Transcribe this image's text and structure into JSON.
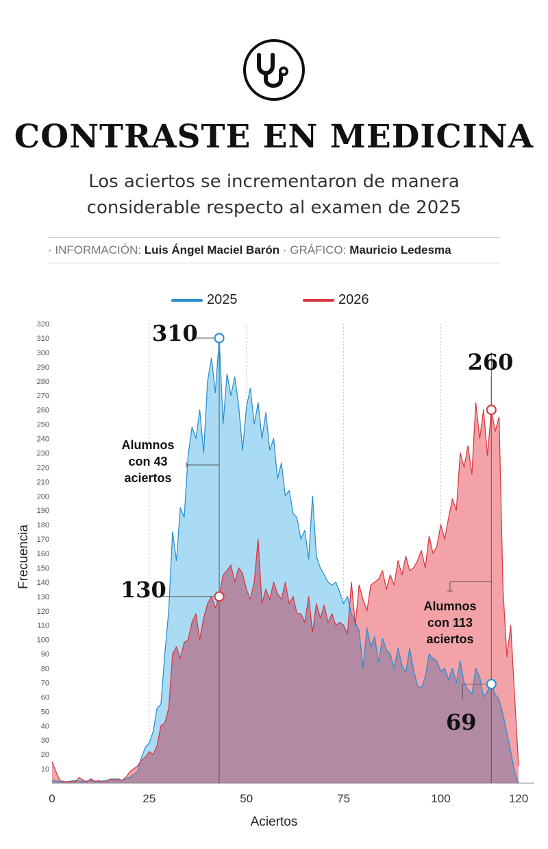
{
  "header": {
    "icon": "stethoscope-icon",
    "title": "CONTRASTE EN MEDICINA",
    "subtitle_line1": "Los aciertos se incrementaron de manera",
    "subtitle_line2": "considerable respecto al examen de 2025"
  },
  "credits": {
    "info_label": "· INFORMACIÓN:",
    "info_name": "Luis Ángel Maciel Barón",
    "graphic_label": "· GRÁFICO:",
    "graphic_name": "Mauricio Ledesma"
  },
  "colors": {
    "s2025_line": "#2d8fcf",
    "s2025_fill": "#a9dcf4",
    "s2026_line": "#d83a43",
    "s2026_fill": "#f3a3a8",
    "overlap_fill": "#b28aa3"
  },
  "chart_data": {
    "type": "area",
    "xlabel": "Aciertos",
    "ylabel": "Frecuencia",
    "xlim": [
      0,
      120
    ],
    "ylim": [
      0,
      320
    ],
    "xticks": [
      0,
      25,
      50,
      75,
      100,
      120
    ],
    "yticks": [
      10,
      20,
      30,
      40,
      50,
      60,
      70,
      80,
      90,
      100,
      110,
      120,
      130,
      140,
      150,
      160,
      170,
      180,
      190,
      200,
      210,
      220,
      230,
      240,
      250,
      260,
      270,
      280,
      290,
      300,
      310,
      320
    ],
    "grid": "vertical dotted at 25, 50, 75, 100",
    "legend": "top",
    "series": [
      {
        "name": "2025",
        "points": [
          [
            0,
            2
          ],
          [
            2,
            1
          ],
          [
            4,
            1
          ],
          [
            6,
            2
          ],
          [
            8,
            1
          ],
          [
            10,
            2
          ],
          [
            12,
            1
          ],
          [
            14,
            2
          ],
          [
            16,
            3
          ],
          [
            18,
            2
          ],
          [
            20,
            4
          ],
          [
            22,
            8
          ],
          [
            23,
            18
          ],
          [
            24,
            25
          ],
          [
            25,
            28
          ],
          [
            26,
            36
          ],
          [
            27,
            52
          ],
          [
            28,
            55
          ],
          [
            29,
            90
          ],
          [
            30,
            120
          ],
          [
            31,
            175
          ],
          [
            32,
            155
          ],
          [
            33,
            192
          ],
          [
            34,
            185
          ],
          [
            35,
            228
          ],
          [
            36,
            248
          ],
          [
            37,
            240
          ],
          [
            38,
            260
          ],
          [
            39,
            230
          ],
          [
            40,
            280
          ],
          [
            41,
            296
          ],
          [
            42,
            272
          ],
          [
            43,
            310
          ],
          [
            44,
            250
          ],
          [
            45,
            285
          ],
          [
            46,
            270
          ],
          [
            47,
            283
          ],
          [
            48,
            263
          ],
          [
            49,
            232
          ],
          [
            50,
            262
          ],
          [
            51,
            275
          ],
          [
            52,
            250
          ],
          [
            53,
            265
          ],
          [
            54,
            240
          ],
          [
            55,
            258
          ],
          [
            56,
            232
          ],
          [
            57,
            240
          ],
          [
            58,
            212
          ],
          [
            59,
            223
          ],
          [
            60,
            200
          ],
          [
            61,
            204
          ],
          [
            62,
            188
          ],
          [
            63,
            185
          ],
          [
            64,
            170
          ],
          [
            65,
            176
          ],
          [
            66,
            156
          ],
          [
            67,
            200
          ],
          [
            68,
            158
          ],
          [
            69,
            150
          ],
          [
            70,
            145
          ],
          [
            71,
            140
          ],
          [
            72,
            138
          ],
          [
            73,
            140
          ],
          [
            74,
            133
          ],
          [
            75,
            125
          ],
          [
            76,
            130
          ],
          [
            77,
            118
          ],
          [
            78,
            112
          ],
          [
            79,
            106
          ],
          [
            80,
            80
          ],
          [
            81,
            108
          ],
          [
            82,
            95
          ],
          [
            83,
            102
          ],
          [
            84,
            84
          ],
          [
            85,
            101
          ],
          [
            86,
            93
          ],
          [
            87,
            90
          ],
          [
            88,
            80
          ],
          [
            89,
            94
          ],
          [
            90,
            82
          ],
          [
            91,
            77
          ],
          [
            92,
            94
          ],
          [
            93,
            79
          ],
          [
            94,
            68
          ],
          [
            95,
            66
          ],
          [
            96,
            74
          ],
          [
            97,
            90
          ],
          [
            98,
            87
          ],
          [
            99,
            85
          ],
          [
            100,
            78
          ],
          [
            101,
            80
          ],
          [
            102,
            72
          ],
          [
            103,
            80
          ],
          [
            104,
            70
          ],
          [
            105,
            85
          ],
          [
            106,
            70
          ],
          [
            107,
            65
          ],
          [
            108,
            62
          ],
          [
            109,
            80
          ],
          [
            110,
            74
          ],
          [
            111,
            60
          ],
          [
            112,
            64
          ],
          [
            113,
            69
          ],
          [
            114,
            62
          ],
          [
            115,
            58
          ],
          [
            116,
            48
          ],
          [
            117,
            35
          ],
          [
            118,
            22
          ],
          [
            119,
            8
          ],
          [
            120,
            0
          ]
        ]
      },
      {
        "name": "2026",
        "points": [
          [
            0,
            15
          ],
          [
            1,
            8
          ],
          [
            2,
            2
          ],
          [
            3,
            1
          ],
          [
            4,
            1
          ],
          [
            5,
            1
          ],
          [
            6,
            1
          ],
          [
            7,
            4
          ],
          [
            8,
            2
          ],
          [
            9,
            1
          ],
          [
            10,
            3
          ],
          [
            11,
            1
          ],
          [
            12,
            2
          ],
          [
            13,
            1
          ],
          [
            14,
            1
          ],
          [
            15,
            3
          ],
          [
            16,
            2
          ],
          [
            17,
            3
          ],
          [
            18,
            2
          ],
          [
            19,
            4
          ],
          [
            20,
            8
          ],
          [
            21,
            10
          ],
          [
            22,
            12
          ],
          [
            23,
            16
          ],
          [
            24,
            18
          ],
          [
            25,
            22
          ],
          [
            26,
            20
          ],
          [
            27,
            26
          ],
          [
            28,
            40
          ],
          [
            29,
            42
          ],
          [
            30,
            52
          ],
          [
            31,
            90
          ],
          [
            32,
            95
          ],
          [
            33,
            87
          ],
          [
            34,
            98
          ],
          [
            35,
            100
          ],
          [
            36,
            112
          ],
          [
            37,
            118
          ],
          [
            38,
            100
          ],
          [
            39,
            115
          ],
          [
            40,
            125
          ],
          [
            41,
            130
          ],
          [
            42,
            122
          ],
          [
            43,
            130
          ],
          [
            44,
            145
          ],
          [
            45,
            148
          ],
          [
            46,
            152
          ],
          [
            47,
            140
          ],
          [
            48,
            150
          ],
          [
            49,
            146
          ],
          [
            50,
            135
          ],
          [
            51,
            128
          ],
          [
            52,
            140
          ],
          [
            53,
            170
          ],
          [
            54,
            125
          ],
          [
            55,
            135
          ],
          [
            56,
            128
          ],
          [
            57,
            140
          ],
          [
            58,
            132
          ],
          [
            59,
            128
          ],
          [
            60,
            140
          ],
          [
            61,
            125
          ],
          [
            62,
            130
          ],
          [
            63,
            118
          ],
          [
            64,
            118
          ],
          [
            65,
            112
          ],
          [
            66,
            130
          ],
          [
            67,
            105
          ],
          [
            68,
            125
          ],
          [
            69,
            115
          ],
          [
            70,
            124
          ],
          [
            71,
            112
          ],
          [
            72,
            118
          ],
          [
            73,
            110
          ],
          [
            74,
            112
          ],
          [
            75,
            110
          ],
          [
            76,
            104
          ],
          [
            77,
            140
          ],
          [
            78,
            110
          ],
          [
            79,
            138
          ],
          [
            80,
            128
          ],
          [
            81,
            120
          ],
          [
            82,
            138
          ],
          [
            83,
            140
          ],
          [
            84,
            142
          ],
          [
            85,
            148
          ],
          [
            86,
            135
          ],
          [
            87,
            145
          ],
          [
            88,
            138
          ],
          [
            89,
            155
          ],
          [
            90,
            145
          ],
          [
            91,
            158
          ],
          [
            92,
            148
          ],
          [
            93,
            150
          ],
          [
            94,
            155
          ],
          [
            95,
            162
          ],
          [
            96,
            150
          ],
          [
            97,
            172
          ],
          [
            98,
            160
          ],
          [
            99,
            165
          ],
          [
            100,
            180
          ],
          [
            101,
            170
          ],
          [
            102,
            185
          ],
          [
            103,
            198
          ],
          [
            104,
            190
          ],
          [
            105,
            230
          ],
          [
            106,
            220
          ],
          [
            107,
            235
          ],
          [
            108,
            215
          ],
          [
            109,
            265
          ],
          [
            110,
            240
          ],
          [
            111,
            260
          ],
          [
            112,
            228
          ],
          [
            113,
            260
          ],
          [
            114,
            245
          ],
          [
            115,
            255
          ],
          [
            116,
            135
          ],
          [
            117,
            88
          ],
          [
            118,
            110
          ],
          [
            119,
            60
          ],
          [
            120,
            12
          ]
        ]
      }
    ],
    "annotations": [
      {
        "label": "310",
        "x": 43,
        "y": 310,
        "series": "2025"
      },
      {
        "label": "130",
        "x": 43,
        "y": 130,
        "series": "2026"
      },
      {
        "label": "260",
        "x": 113,
        "y": 260,
        "series": "2026"
      },
      {
        "label": "69",
        "x": 113,
        "y": 69,
        "series": "2025"
      }
    ],
    "notes": [
      {
        "lines": [
          "Alumnos",
          "con 43",
          "aciertos"
        ],
        "x": 43
      },
      {
        "lines": [
          "Alumnos",
          "con 113",
          "aciertos"
        ],
        "x": 113
      }
    ]
  }
}
